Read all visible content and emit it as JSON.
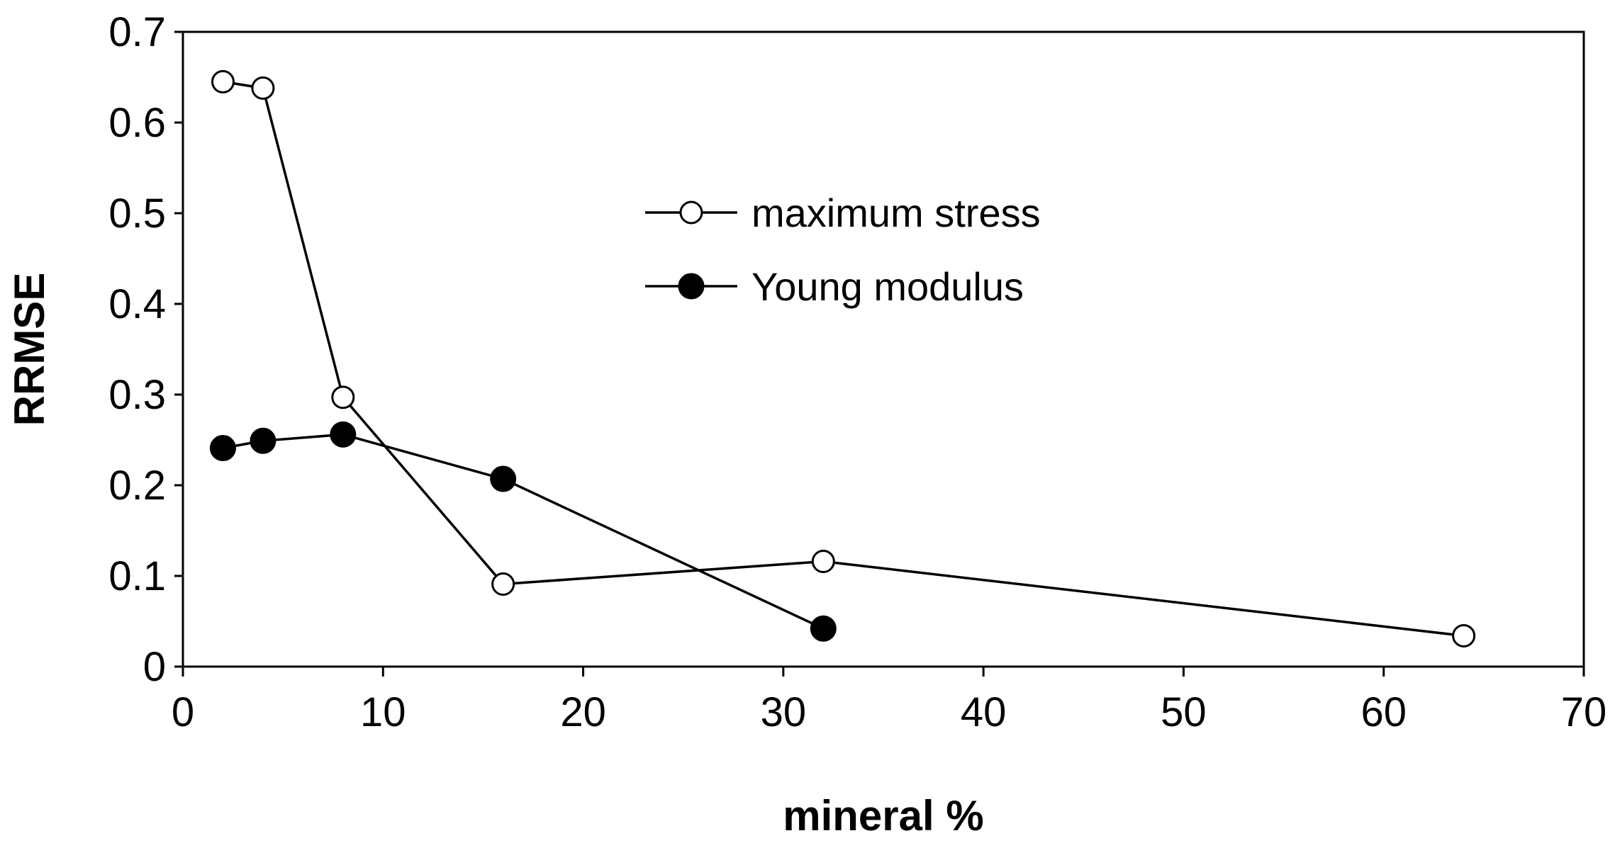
{
  "chart_data": {
    "type": "line",
    "title": "",
    "xlabel": "mineral %",
    "ylabel": "RRMSE",
    "xlim": [
      0,
      70
    ],
    "ylim": [
      0,
      0.7
    ],
    "xticks": [
      0,
      10,
      20,
      30,
      40,
      50,
      60,
      70
    ],
    "xtick_labels": [
      "0",
      "10",
      "20",
      "30",
      "40",
      "50",
      "60",
      "70"
    ],
    "yticks": [
      0,
      0.1,
      0.2,
      0.3,
      0.4,
      0.5,
      0.6,
      0.7
    ],
    "ytick_labels": [
      "0",
      "0.1",
      "0.2",
      "0.3",
      "0.4",
      "0.5",
      "0.6",
      "0.7"
    ],
    "grid": false,
    "legend_position": "upper-center",
    "series": [
      {
        "name": "maximum stress",
        "marker": "open-circle",
        "color": "#000000",
        "x": [
          2,
          4,
          8,
          16,
          32,
          64
        ],
        "y": [
          0.645,
          0.638,
          0.297,
          0.091,
          0.116,
          0.034
        ]
      },
      {
        "name": "Young modulus",
        "marker": "filled-circle",
        "color": "#000000",
        "x": [
          2,
          4,
          8,
          16,
          32
        ],
        "y": [
          0.241,
          0.249,
          0.256,
          0.207,
          0.042
        ]
      }
    ]
  }
}
